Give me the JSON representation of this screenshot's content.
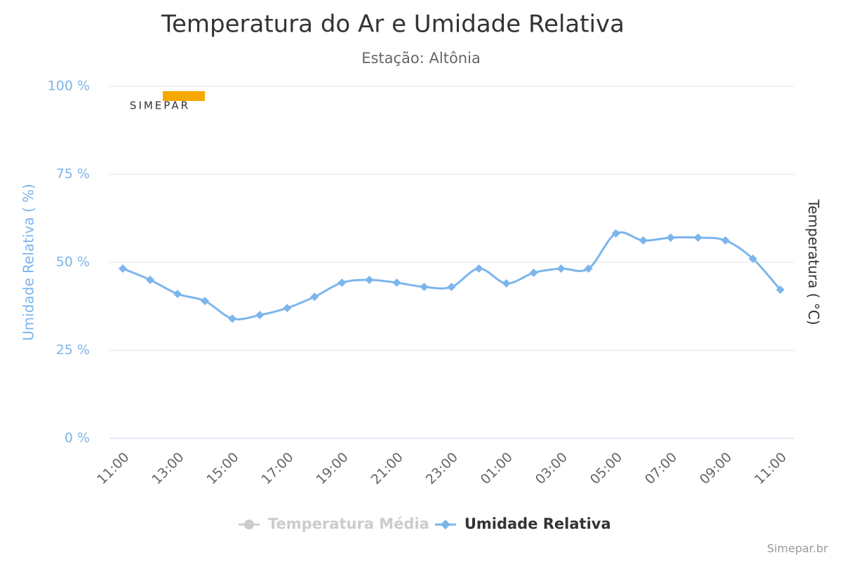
{
  "chart_data": {
    "type": "line",
    "title": "Temperatura do Ar e Umidade Relativa",
    "subtitle": "Estação: Altônia",
    "logo": "SIMEPAR",
    "credit": "Simepar.br",
    "y_label": "Umidade Relativa ( %)",
    "y2_label": "Temperatura ( °C)",
    "categories": [
      "11:00",
      null,
      "13:00",
      null,
      "15:00",
      null,
      "17:00",
      null,
      "19:00",
      null,
      "21:00",
      null,
      "23:00",
      null,
      "01:00",
      null,
      "03:00",
      null,
      "05:00",
      null,
      "07:00",
      null,
      "09:00",
      null,
      "11:00"
    ],
    "series": [
      {
        "name": "Temperatura Média",
        "color": "#cccccc",
        "hidden": true,
        "axis": "y2"
      },
      {
        "name": "Umidade Relativa",
        "color": "#7cb5ec",
        "values": [
          48.2,
          45,
          41,
          39,
          34,
          35,
          37,
          40.2,
          44.2,
          45,
          44.2,
          43,
          43,
          48.2,
          44,
          47,
          48.2,
          48.2,
          58.2,
          56.2,
          57,
          57,
          56.2,
          51,
          42.2
        ]
      }
    ],
    "ylim": [
      0,
      100
    ],
    "yticks": [
      {
        "value": 0,
        "label": "0 %"
      },
      {
        "value": 25,
        "label": "25 %"
      },
      {
        "value": 50,
        "label": "50 %"
      },
      {
        "value": 75,
        "label": "75 %"
      },
      {
        "value": 100,
        "label": "100 %"
      }
    ],
    "grid": true
  }
}
